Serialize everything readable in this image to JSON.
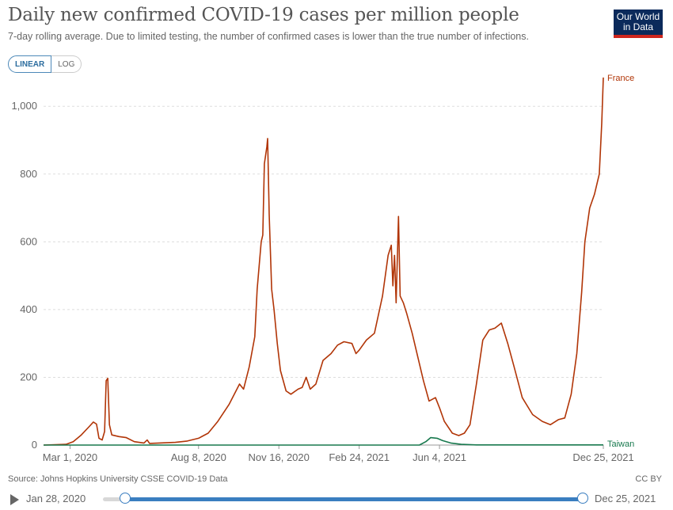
{
  "header": {
    "title": "Daily new confirmed COVID-19 cases per million people",
    "subtitle": "7-day rolling average. Due to limited testing, the number of confirmed cases is lower than the true number of infections.",
    "logo_line1": "Our World",
    "logo_line2": "in Data"
  },
  "scale_toggle": {
    "linear_label": "LINEAR",
    "log_label": "LOG",
    "selected": "linear"
  },
  "chart_data": {
    "type": "line",
    "title": "Daily new confirmed COVID-19 cases per million people",
    "ylim": [
      0,
      1080
    ],
    "yticks": [
      0,
      200,
      400,
      600,
      800,
      1000
    ],
    "ytick_labels": [
      "0",
      "200",
      "400",
      "600",
      "800",
      "1,000"
    ],
    "xlim": [
      "2020-01-28",
      "2021-12-25"
    ],
    "xticks": [
      "2020-03-01",
      "2020-08-08",
      "2020-11-16",
      "2021-02-24",
      "2021-06-04",
      "2021-12-25"
    ],
    "xtick_labels": [
      "Mar 1, 2020",
      "Aug 8, 2020",
      "Nov 16, 2020",
      "Feb 24, 2021",
      "Jun 4, 2021",
      "Dec 25, 2021"
    ],
    "grid": "horizontal-dashed",
    "series": [
      {
        "name": "France",
        "color": "#b13507",
        "points": [
          [
            "2020-01-28",
            0
          ],
          [
            "2020-02-25",
            2
          ],
          [
            "2020-03-05",
            10
          ],
          [
            "2020-03-15",
            30
          ],
          [
            "2020-03-25",
            55
          ],
          [
            "2020-03-30",
            68
          ],
          [
            "2020-04-03",
            62
          ],
          [
            "2020-04-06",
            20
          ],
          [
            "2020-04-10",
            15
          ],
          [
            "2020-04-13",
            40
          ],
          [
            "2020-04-15",
            190
          ],
          [
            "2020-04-17",
            197
          ],
          [
            "2020-04-19",
            60
          ],
          [
            "2020-04-22",
            30
          ],
          [
            "2020-05-01",
            25
          ],
          [
            "2020-05-10",
            22
          ],
          [
            "2020-05-20",
            10
          ],
          [
            "2020-06-01",
            6
          ],
          [
            "2020-06-05",
            15
          ],
          [
            "2020-06-08",
            5
          ],
          [
            "2020-06-20",
            6
          ],
          [
            "2020-07-10",
            8
          ],
          [
            "2020-07-25",
            12
          ],
          [
            "2020-08-08",
            20
          ],
          [
            "2020-08-20",
            35
          ],
          [
            "2020-09-01",
            70
          ],
          [
            "2020-09-15",
            120
          ],
          [
            "2020-09-28",
            180
          ],
          [
            "2020-10-03",
            165
          ],
          [
            "2020-10-10",
            230
          ],
          [
            "2020-10-17",
            320
          ],
          [
            "2020-10-20",
            460
          ],
          [
            "2020-10-25",
            600
          ],
          [
            "2020-10-27",
            620
          ],
          [
            "2020-10-29",
            830
          ],
          [
            "2020-11-01",
            880
          ],
          [
            "2020-11-02",
            905
          ],
          [
            "2020-11-04",
            680
          ],
          [
            "2020-11-07",
            460
          ],
          [
            "2020-11-10",
            400
          ],
          [
            "2020-11-14",
            300
          ],
          [
            "2020-11-18",
            220
          ],
          [
            "2020-11-25",
            160
          ],
          [
            "2020-12-01",
            150
          ],
          [
            "2020-12-10",
            165
          ],
          [
            "2020-12-15",
            170
          ],
          [
            "2020-12-20",
            200
          ],
          [
            "2020-12-25",
            165
          ],
          [
            "2021-01-01",
            180
          ],
          [
            "2021-01-10",
            250
          ],
          [
            "2021-01-20",
            270
          ],
          [
            "2021-01-28",
            295
          ],
          [
            "2021-02-05",
            305
          ],
          [
            "2021-02-15",
            300
          ],
          [
            "2021-02-20",
            270
          ],
          [
            "2021-02-24",
            280
          ],
          [
            "2021-03-05",
            310
          ],
          [
            "2021-03-15",
            330
          ],
          [
            "2021-03-25",
            440
          ],
          [
            "2021-04-01",
            560
          ],
          [
            "2021-04-05",
            590
          ],
          [
            "2021-04-07",
            470
          ],
          [
            "2021-04-09",
            560
          ],
          [
            "2021-04-11",
            420
          ],
          [
            "2021-04-14",
            675
          ],
          [
            "2021-04-16",
            440
          ],
          [
            "2021-04-20",
            420
          ],
          [
            "2021-04-24",
            390
          ],
          [
            "2021-05-01",
            330
          ],
          [
            "2021-05-08",
            260
          ],
          [
            "2021-05-15",
            190
          ],
          [
            "2021-05-22",
            130
          ],
          [
            "2021-05-30",
            140
          ],
          [
            "2021-06-04",
            110
          ],
          [
            "2021-06-10",
            70
          ],
          [
            "2021-06-20",
            35
          ],
          [
            "2021-06-28",
            28
          ],
          [
            "2021-07-05",
            35
          ],
          [
            "2021-07-12",
            60
          ],
          [
            "2021-07-20",
            180
          ],
          [
            "2021-07-28",
            310
          ],
          [
            "2021-08-05",
            340
          ],
          [
            "2021-08-12",
            345
          ],
          [
            "2021-08-20",
            360
          ],
          [
            "2021-08-28",
            300
          ],
          [
            "2021-09-05",
            230
          ],
          [
            "2021-09-15",
            140
          ],
          [
            "2021-09-28",
            90
          ],
          [
            "2021-10-10",
            70
          ],
          [
            "2021-10-20",
            60
          ],
          [
            "2021-10-30",
            75
          ],
          [
            "2021-11-07",
            80
          ],
          [
            "2021-11-15",
            150
          ],
          [
            "2021-11-22",
            270
          ],
          [
            "2021-11-28",
            450
          ],
          [
            "2021-12-02",
            600
          ],
          [
            "2021-12-08",
            700
          ],
          [
            "2021-12-14",
            740
          ],
          [
            "2021-12-20",
            800
          ],
          [
            "2021-12-23",
            950
          ],
          [
            "2021-12-25",
            1085
          ]
        ]
      },
      {
        "name": "Taiwan",
        "color": "#18794e",
        "points": [
          [
            "2020-01-28",
            0
          ],
          [
            "2021-05-10",
            0
          ],
          [
            "2021-05-18",
            10
          ],
          [
            "2021-05-24",
            22
          ],
          [
            "2021-06-01",
            20
          ],
          [
            "2021-06-08",
            13
          ],
          [
            "2021-06-18",
            6
          ],
          [
            "2021-07-01",
            2
          ],
          [
            "2021-07-20",
            0.5
          ],
          [
            "2021-12-25",
            0.5
          ]
        ]
      }
    ]
  },
  "footer": {
    "source": "Source: Johns Hopkins University CSSE COVID-19 Data",
    "license": "CC BY"
  },
  "timeline": {
    "start_label": "Jan 28, 2020",
    "end_label": "Dec 25, 2021"
  }
}
